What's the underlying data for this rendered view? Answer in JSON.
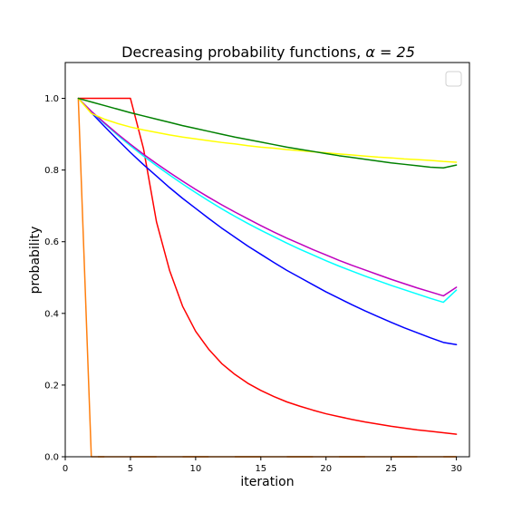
{
  "chart_data": {
    "type": "line",
    "title": "Decreasing probability functions, ",
    "title_math": "α = 25",
    "xlabel": "iteration",
    "ylabel": "probability",
    "xlim": [
      0,
      31
    ],
    "ylim": [
      0,
      1.1
    ],
    "xticks": [
      0,
      5,
      10,
      15,
      20,
      25,
      30
    ],
    "yticks": [
      0.0,
      0.2,
      0.4,
      0.6,
      0.8,
      1.0
    ],
    "yticks_labels": [
      "0.0",
      "0.2",
      "0.4",
      "0.6",
      "0.8",
      "1.0"
    ],
    "grid": false,
    "legend": {
      "placement": "top-right",
      "entries": []
    },
    "series": [
      {
        "color": "#ff7f0e",
        "x": [
          1,
          2,
          3,
          4,
          5,
          6,
          7,
          8,
          9,
          10,
          11,
          12,
          13,
          14,
          15,
          16,
          17,
          18,
          19,
          20,
          21,
          22,
          23,
          24,
          25,
          26,
          27,
          28,
          29,
          30
        ],
        "y": [
          1.0,
          0,
          0,
          0,
          0,
          0,
          0,
          0,
          0,
          0,
          0,
          0,
          0,
          0,
          0,
          0,
          0,
          0,
          0,
          0,
          0,
          0,
          0,
          0,
          0,
          0,
          0,
          0,
          0,
          0
        ]
      },
      {
        "color": "#ff0000",
        "x": [
          1,
          2,
          3,
          4,
          5,
          6,
          7,
          8,
          9,
          10,
          11,
          12,
          13,
          14,
          15,
          16,
          17,
          18,
          19,
          20,
          21,
          22,
          23,
          24,
          25,
          26,
          27,
          28,
          29,
          30
        ],
        "y": [
          1.0,
          1.0,
          1.0,
          1.0,
          1.0,
          0.86,
          0.655,
          0.52,
          0.42,
          0.35,
          0.3,
          0.26,
          0.23,
          0.205,
          0.185,
          0.168,
          0.153,
          0.141,
          0.13,
          0.12,
          0.112,
          0.104,
          0.097,
          0.091,
          0.085,
          0.08,
          0.075,
          0.071,
          0.067,
          0.063
        ]
      },
      {
        "color": "#0000ff",
        "x": [
          1,
          2,
          3,
          4,
          5,
          6,
          7,
          8,
          9,
          10,
          11,
          12,
          13,
          14,
          15,
          16,
          17,
          18,
          19,
          20,
          21,
          22,
          23,
          24,
          25,
          26,
          27,
          28,
          29,
          30
        ],
        "y": [
          1.0,
          0.96,
          0.922,
          0.885,
          0.849,
          0.815,
          0.783,
          0.751,
          0.721,
          0.693,
          0.665,
          0.638,
          0.613,
          0.588,
          0.565,
          0.542,
          0.52,
          0.5,
          0.48,
          0.46,
          0.442,
          0.424,
          0.407,
          0.391,
          0.375,
          0.36,
          0.346,
          0.332,
          0.319,
          0.313
        ]
      },
      {
        "color": "#00ffff",
        "x": [
          1,
          2,
          3,
          4,
          5,
          6,
          7,
          8,
          9,
          10,
          11,
          12,
          13,
          14,
          15,
          16,
          17,
          18,
          19,
          20,
          21,
          22,
          23,
          24,
          25,
          26,
          27,
          28,
          29,
          30
        ],
        "y": [
          1.0,
          0.963,
          0.93,
          0.898,
          0.868,
          0.839,
          0.812,
          0.786,
          0.761,
          0.737,
          0.714,
          0.692,
          0.671,
          0.651,
          0.632,
          0.614,
          0.596,
          0.579,
          0.563,
          0.547,
          0.532,
          0.518,
          0.504,
          0.491,
          0.478,
          0.466,
          0.454,
          0.442,
          0.431,
          0.465
        ]
      },
      {
        "color": "#bf00bf",
        "x": [
          1,
          2,
          3,
          4,
          5,
          6,
          7,
          8,
          9,
          10,
          11,
          12,
          13,
          14,
          15,
          16,
          17,
          18,
          19,
          20,
          21,
          22,
          23,
          24,
          25,
          26,
          27,
          28,
          29,
          30
        ],
        "y": [
          1.0,
          0.964,
          0.932,
          0.901,
          0.872,
          0.844,
          0.818,
          0.793,
          0.769,
          0.746,
          0.724,
          0.703,
          0.683,
          0.664,
          0.645,
          0.627,
          0.61,
          0.594,
          0.578,
          0.563,
          0.548,
          0.534,
          0.521,
          0.508,
          0.495,
          0.483,
          0.471,
          0.46,
          0.449,
          0.473
        ]
      },
      {
        "color": "#ffff00",
        "x": [
          1,
          2,
          3,
          4,
          5,
          6,
          7,
          8,
          9,
          10,
          11,
          12,
          13,
          14,
          15,
          16,
          17,
          18,
          19,
          20,
          21,
          22,
          23,
          24,
          25,
          26,
          27,
          28,
          29,
          30
        ],
        "y": [
          1.0,
          0.958,
          0.942,
          0.93,
          0.92,
          0.912,
          0.905,
          0.898,
          0.892,
          0.887,
          0.882,
          0.877,
          0.873,
          0.868,
          0.864,
          0.861,
          0.857,
          0.854,
          0.851,
          0.848,
          0.845,
          0.842,
          0.839,
          0.836,
          0.834,
          0.831,
          0.829,
          0.827,
          0.824,
          0.822
        ]
      },
      {
        "color": "#008000",
        "x": [
          1,
          2,
          3,
          4,
          5,
          6,
          7,
          8,
          9,
          10,
          11,
          12,
          13,
          14,
          15,
          16,
          17,
          18,
          19,
          20,
          21,
          22,
          23,
          24,
          25,
          26,
          27,
          28,
          29,
          30
        ],
        "y": [
          1.0,
          0.99,
          0.98,
          0.97,
          0.96,
          0.951,
          0.942,
          0.933,
          0.924,
          0.916,
          0.908,
          0.9,
          0.892,
          0.885,
          0.878,
          0.871,
          0.864,
          0.858,
          0.852,
          0.846,
          0.84,
          0.835,
          0.83,
          0.825,
          0.82,
          0.816,
          0.812,
          0.808,
          0.806,
          0.814
        ]
      }
    ],
    "orange_dashes": [
      [
        2.5,
        3.0
      ],
      [
        5.0,
        7.0
      ],
      [
        9.0,
        11.0
      ],
      [
        13.0,
        15.0
      ],
      [
        17.0,
        19.0
      ],
      [
        21.0,
        23.0
      ],
      [
        25.0,
        27.0
      ],
      [
        29.0,
        30.0
      ]
    ]
  }
}
